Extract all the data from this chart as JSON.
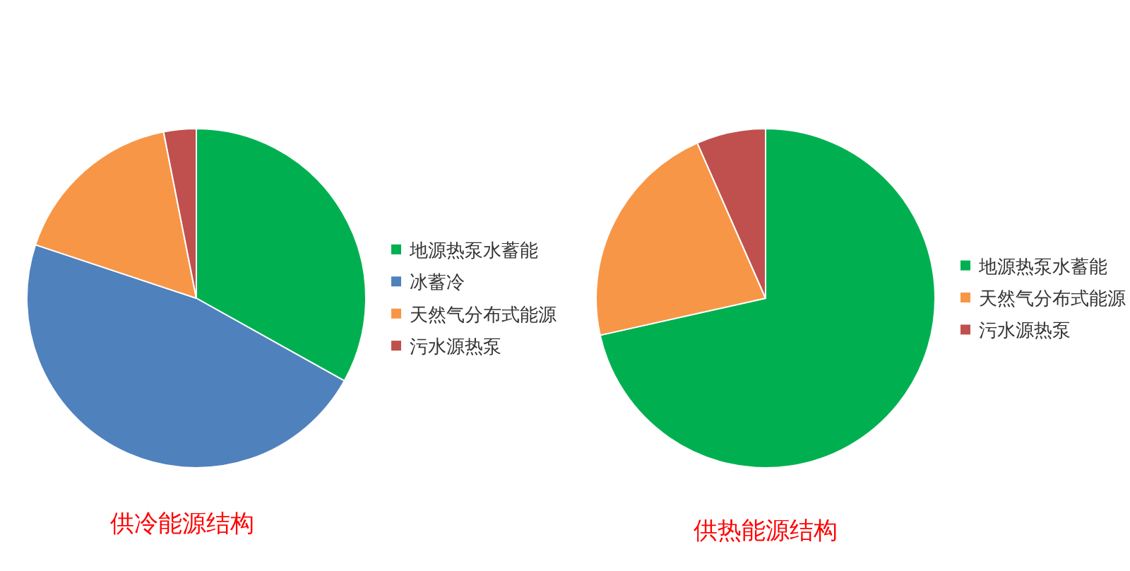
{
  "chart_data": [
    {
      "type": "pie",
      "title": "供冷能源结构",
      "categories": [
        "地源热泵水蓄能",
        "冰蓄冷",
        "天然气分布式能源",
        "污水源热泵"
      ],
      "values": [
        33.1,
        47.0,
        16.8,
        3.1
      ],
      "colors": [
        "#00b050",
        "#4f81bd",
        "#f79646",
        "#c0504d"
      ],
      "legend": "right"
    },
    {
      "type": "pie",
      "title": "供热能源结构",
      "categories": [
        "地源热泵水蓄能",
        "天然气分布式能源",
        "污水源热泵"
      ],
      "values": [
        71.5,
        21.9,
        6.6
      ],
      "colors": [
        "#00b050",
        "#f79646",
        "#c0504d"
      ],
      "legend": "right"
    }
  ]
}
